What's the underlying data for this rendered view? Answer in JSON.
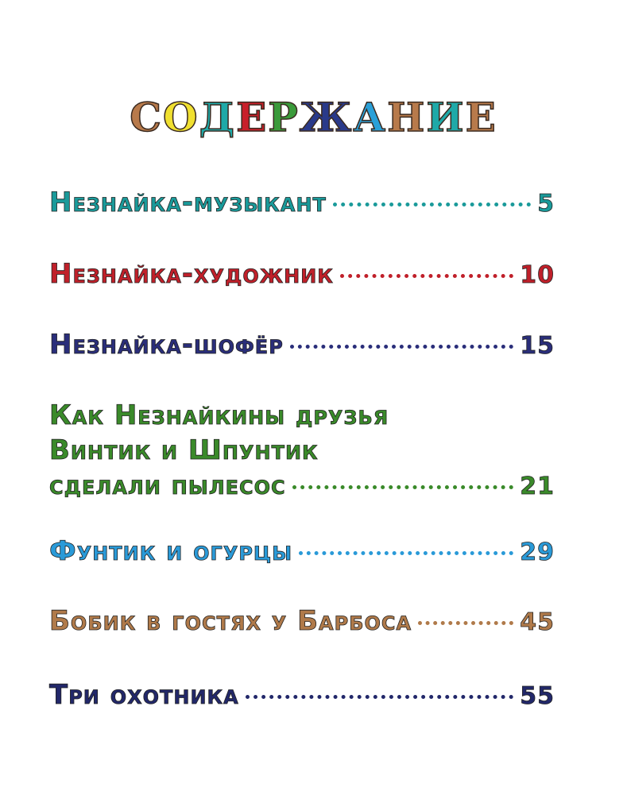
{
  "title": {
    "letters": [
      "С",
      "О",
      "Д",
      "Е",
      "Р",
      "Ж",
      "А",
      "Н",
      "И",
      "Е"
    ],
    "colors": [
      "#b87a4b",
      "#f0e030",
      "#1fa9a8",
      "#c8202a",
      "#3a9a3a",
      "#2a3a8a",
      "#2aa0d8",
      "#b87a4b",
      "#1fa9a8",
      "#b87a4b"
    ]
  },
  "entries": [
    {
      "lines": [],
      "title": "Незнайка-музыкант",
      "page": "5",
      "color": "#1a9a9a"
    },
    {
      "lines": [],
      "title": "Незнайка-художник",
      "page": "10",
      "color": "#c0202a"
    },
    {
      "lines": [],
      "title": "Незнайка-шофёр",
      "page": "15",
      "color": "#2a2e7a"
    },
    {
      "lines": [
        "Как Незнайкины друзья",
        "Винтик и Шпунтик"
      ],
      "title": "сделали пылесос",
      "page": "21",
      "color": "#3a8a2a"
    },
    {
      "lines": [],
      "title": "Фунтик и огурцы",
      "page": "29",
      "color": "#2a9ad8"
    },
    {
      "lines": [],
      "title": "Бобик в гостях у Барбоса",
      "page": "45",
      "color": "#b07a4a"
    },
    {
      "lines": [],
      "title": "Три охотника",
      "page": "55",
      "color": "#22286a"
    }
  ]
}
